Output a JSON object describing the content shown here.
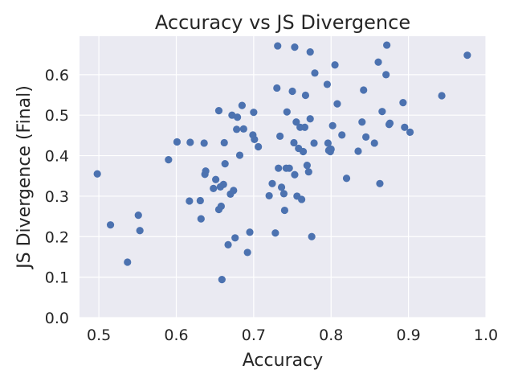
{
  "chart_data": {
    "type": "scatter",
    "title": "Accuracy vs JS Divergence",
    "xlabel": "Accuracy",
    "ylabel": "JS Divergence (Final)",
    "xlim": [
      0.475,
      1.0
    ],
    "ylim": [
      0.0,
      0.695
    ],
    "xticks": [
      "0.5",
      "0.6",
      "0.7",
      "0.8",
      "0.9",
      "1.0"
    ],
    "yticks": [
      "0.0",
      "0.1",
      "0.2",
      "0.3",
      "0.4",
      "0.5",
      "0.6"
    ],
    "grid": true,
    "marker_color": "#4c72b0",
    "background_color": "#eaeaf2",
    "points": [
      [
        0.498,
        0.355
      ],
      [
        0.515,
        0.229
      ],
      [
        0.537,
        0.137
      ],
      [
        0.551,
        0.253
      ],
      [
        0.553,
        0.215
      ],
      [
        0.59,
        0.39
      ],
      [
        0.601,
        0.434
      ],
      [
        0.617,
        0.288
      ],
      [
        0.618,
        0.433
      ],
      [
        0.631,
        0.289
      ],
      [
        0.632,
        0.244
      ],
      [
        0.636,
        0.431
      ],
      [
        0.637,
        0.354
      ],
      [
        0.638,
        0.362
      ],
      [
        0.648,
        0.319
      ],
      [
        0.651,
        0.341
      ],
      [
        0.655,
        0.267
      ],
      [
        0.655,
        0.511
      ],
      [
        0.657,
        0.323
      ],
      [
        0.658,
        0.275
      ],
      [
        0.659,
        0.094
      ],
      [
        0.661,
        0.329
      ],
      [
        0.662,
        0.432
      ],
      [
        0.663,
        0.38
      ],
      [
        0.667,
        0.18
      ],
      [
        0.67,
        0.305
      ],
      [
        0.672,
        0.5
      ],
      [
        0.674,
        0.314
      ],
      [
        0.676,
        0.197
      ],
      [
        0.678,
        0.465
      ],
      [
        0.679,
        0.495
      ],
      [
        0.682,
        0.401
      ],
      [
        0.685,
        0.524
      ],
      [
        0.687,
        0.466
      ],
      [
        0.692,
        0.161
      ],
      [
        0.695,
        0.211
      ],
      [
        0.699,
        0.451
      ],
      [
        0.7,
        0.507
      ],
      [
        0.701,
        0.44
      ],
      [
        0.706,
        0.422
      ],
      [
        0.72,
        0.301
      ],
      [
        0.724,
        0.331
      ],
      [
        0.728,
        0.209
      ],
      [
        0.73,
        0.567
      ],
      [
        0.731,
        0.671
      ],
      [
        0.732,
        0.369
      ],
      [
        0.734,
        0.448
      ],
      [
        0.736,
        0.322
      ],
      [
        0.739,
        0.306
      ],
      [
        0.74,
        0.265
      ],
      [
        0.742,
        0.369
      ],
      [
        0.743,
        0.508
      ],
      [
        0.746,
        0.369
      ],
      [
        0.75,
        0.559
      ],
      [
        0.752,
        0.432
      ],
      [
        0.753,
        0.353
      ],
      [
        0.753,
        0.668
      ],
      [
        0.755,
        0.483
      ],
      [
        0.756,
        0.3
      ],
      [
        0.758,
        0.418
      ],
      [
        0.76,
        0.47
      ],
      [
        0.762,
        0.292
      ],
      [
        0.764,
        0.41
      ],
      [
        0.766,
        0.47
      ],
      [
        0.767,
        0.549
      ],
      [
        0.769,
        0.376
      ],
      [
        0.771,
        0.36
      ],
      [
        0.773,
        0.491
      ],
      [
        0.773,
        0.656
      ],
      [
        0.775,
        0.2
      ],
      [
        0.778,
        0.431
      ],
      [
        0.779,
        0.604
      ],
      [
        0.795,
        0.576
      ],
      [
        0.796,
        0.431
      ],
      [
        0.797,
        0.413
      ],
      [
        0.799,
        0.41
      ],
      [
        0.8,
        0.416
      ],
      [
        0.802,
        0.474
      ],
      [
        0.805,
        0.624
      ],
      [
        0.808,
        0.528
      ],
      [
        0.814,
        0.451
      ],
      [
        0.82,
        0.344
      ],
      [
        0.835,
        0.411
      ],
      [
        0.84,
        0.483
      ],
      [
        0.842,
        0.562
      ],
      [
        0.845,
        0.446
      ],
      [
        0.856,
        0.431
      ],
      [
        0.861,
        0.631
      ],
      [
        0.863,
        0.331
      ],
      [
        0.866,
        0.509
      ],
      [
        0.871,
        0.6
      ],
      [
        0.872,
        0.673
      ],
      [
        0.875,
        0.477
      ],
      [
        0.876,
        0.48
      ],
      [
        0.893,
        0.531
      ],
      [
        0.895,
        0.47
      ],
      [
        0.902,
        0.458
      ],
      [
        0.943,
        0.548
      ],
      [
        0.976,
        0.648
      ]
    ]
  }
}
